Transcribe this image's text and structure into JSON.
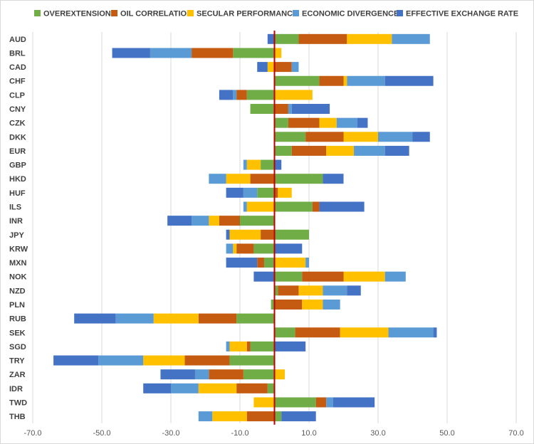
{
  "chart_data": {
    "type": "bar",
    "orientation": "horizontal",
    "stacked": true,
    "title": "",
    "xlabel": "",
    "ylabel": "",
    "xlim": [
      -70,
      70
    ],
    "xticks": [
      -70,
      -50,
      -30,
      -10,
      10,
      30,
      50,
      70
    ],
    "xtick_labels": [
      "-70.0",
      "-50.0",
      "-30.0",
      "-10.0",
      "10.0",
      "30.0",
      "50.0",
      "70.0"
    ],
    "grid": "vertical",
    "legend_position": "top",
    "zero_line_color": "#c00000",
    "categories": [
      "AUD",
      "BRL",
      "CAD",
      "CHF",
      "CLP",
      "CNY",
      "CZK",
      "DKK",
      "EUR",
      "GBP",
      "HKD",
      "HUF",
      "ILS",
      "INR",
      "JPY",
      "KRW",
      "MXN",
      "NOK",
      "NZD",
      "PLN",
      "RUB",
      "SEK",
      "SGD",
      "TRY",
      "ZAR",
      "IDR",
      "TWD",
      "THB"
    ],
    "series": [
      {
        "name": "OVEREXTENSION",
        "color": "#70ad47",
        "values": [
          7,
          -12,
          0,
          13,
          -8,
          -7,
          4,
          9,
          5,
          -4,
          14,
          -5,
          11,
          -10,
          10,
          -6,
          -3,
          8,
          1,
          -1,
          -11,
          6,
          -7,
          -13,
          -9,
          -2,
          12,
          2
        ]
      },
      {
        "name": "OIL CORRELATION",
        "color": "#c55a11",
        "values": [
          14,
          -12,
          5,
          7,
          -3,
          4,
          9,
          11,
          10,
          0,
          -7,
          1,
          2,
          -6,
          -4,
          -5,
          -2,
          12,
          6,
          8,
          -11,
          13,
          -1,
          -13,
          -10,
          -9,
          3,
          -8
        ]
      },
      {
        "name": "SECULAR PERFORMANCE",
        "color": "#ffc000",
        "values": [
          13,
          2,
          -2,
          1,
          11,
          0,
          5,
          10,
          8,
          -4,
          -7,
          4,
          -8,
          -3,
          -9,
          -1,
          9,
          12,
          7,
          6,
          -13,
          14,
          -5,
          -12,
          3,
          -11,
          -6,
          -10
        ]
      },
      {
        "name": "ECONOMIC DIVERGENCE",
        "color": "#5b9bd5",
        "values": [
          11,
          -12,
          2,
          11,
          -1,
          1,
          6,
          10,
          9,
          -1,
          -5,
          -4,
          -1,
          -5,
          0,
          -2,
          1,
          6,
          7,
          5,
          -11,
          13,
          -1,
          -13,
          -4,
          -8,
          2,
          -4
        ]
      },
      {
        "name": "EFFECTIVE EXCHANGE RATE",
        "color": "#4472c4",
        "values": [
          -2,
          -11,
          -3,
          14,
          -4,
          11,
          3,
          5,
          7,
          2,
          6,
          -5,
          13,
          -7,
          -1,
          8,
          -9,
          -6,
          4,
          0,
          -12,
          1,
          9,
          -13,
          -10,
          -8,
          12,
          10
        ]
      }
    ]
  }
}
